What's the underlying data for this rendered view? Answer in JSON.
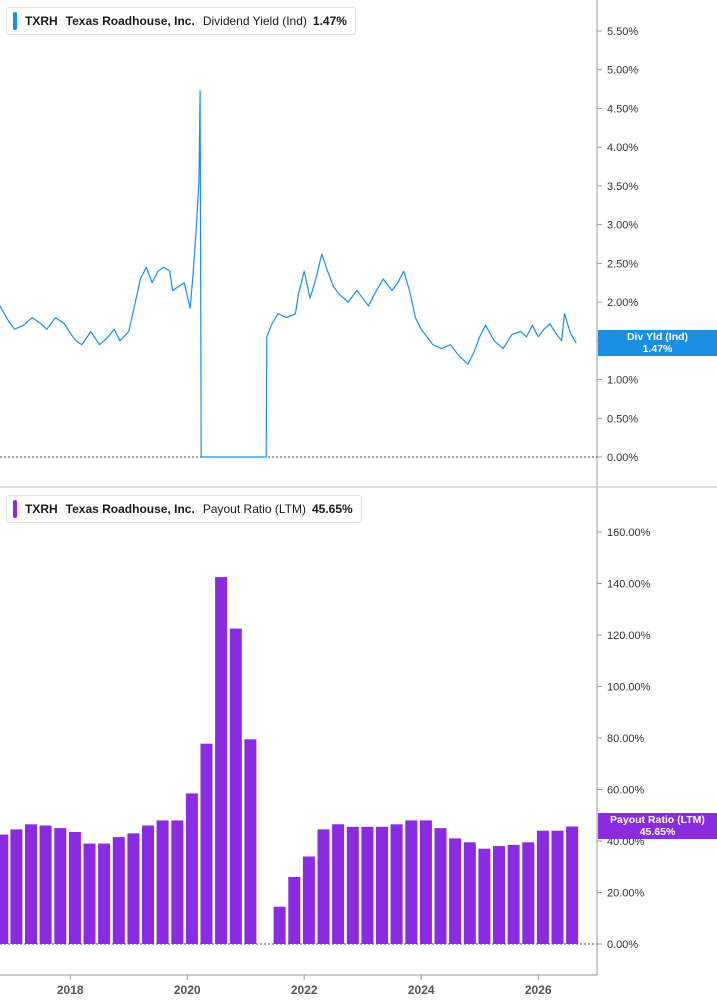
{
  "chart_data": [
    {
      "type": "line",
      "ticker": "TXRH",
      "company": "Texas Roadhouse, Inc.",
      "metric": "Dividend Yield (Ind)",
      "current_value": "1.47%",
      "badge_label": "Div Yld (Ind)",
      "badge_value": "1.47%",
      "color": "#1a8fe3",
      "ylim": [
        0,
        5.75
      ],
      "y_ticks": [
        "0.00%",
        "0.50%",
        "1.00%",
        "1.50%",
        "2.00%",
        "2.50%",
        "3.00%",
        "3.50%",
        "4.00%",
        "4.50%",
        "5.00%",
        "5.50%"
      ],
      "y_tick_values": [
        0,
        0.5,
        1.0,
        1.5,
        2.0,
        2.5,
        3.0,
        3.5,
        4.0,
        4.5,
        5.0,
        5.5
      ],
      "x": [
        2016.8,
        2016.95,
        2017.05,
        2017.2,
        2017.35,
        2017.5,
        2017.6,
        2017.75,
        2017.9,
        2018.0,
        2018.1,
        2018.2,
        2018.35,
        2018.5,
        2018.65,
        2018.75,
        2018.85,
        2019.0,
        2019.1,
        2019.2,
        2019.3,
        2019.4,
        2019.5,
        2019.6,
        2019.7,
        2019.75,
        2019.85,
        2019.95,
        2020.05,
        2020.1,
        2020.15,
        2020.2,
        2020.22,
        2020.24,
        2020.26,
        2021.35,
        2021.36,
        2021.45,
        2021.55,
        2021.7,
        2021.85,
        2021.9,
        2022.0,
        2022.1,
        2022.2,
        2022.3,
        2022.4,
        2022.5,
        2022.6,
        2022.75,
        2022.9,
        2023.0,
        2023.1,
        2023.2,
        2023.35,
        2023.5,
        2023.6,
        2023.7,
        2023.8,
        2023.9,
        2024.0,
        2024.1,
        2024.2,
        2024.35,
        2024.5,
        2024.65,
        2024.8,
        2024.9,
        2025.0,
        2025.1,
        2025.25,
        2025.4,
        2025.55,
        2025.7,
        2025.8,
        2025.9,
        2026.0,
        2026.1,
        2026.2,
        2026.3,
        2026.4,
        2026.45,
        2026.55,
        2026.65
      ],
      "values": [
        1.95,
        1.75,
        1.65,
        1.7,
        1.8,
        1.72,
        1.65,
        1.8,
        1.72,
        1.6,
        1.5,
        1.45,
        1.62,
        1.45,
        1.55,
        1.65,
        1.5,
        1.62,
        1.95,
        2.3,
        2.45,
        2.25,
        2.4,
        2.45,
        2.4,
        2.15,
        2.2,
        2.25,
        1.92,
        2.35,
        2.9,
        3.55,
        4.73,
        0,
        0,
        0,
        1.55,
        1.72,
        1.85,
        1.8,
        1.85,
        2.1,
        2.4,
        2.05,
        2.3,
        2.62,
        2.4,
        2.2,
        2.1,
        2.0,
        2.15,
        2.05,
        1.95,
        2.1,
        2.3,
        2.15,
        2.25,
        2.4,
        2.15,
        1.8,
        1.65,
        1.55,
        1.45,
        1.4,
        1.45,
        1.3,
        1.2,
        1.35,
        1.55,
        1.7,
        1.5,
        1.4,
        1.58,
        1.62,
        1.55,
        1.7,
        1.55,
        1.65,
        1.72,
        1.6,
        1.5,
        1.85,
        1.6,
        1.47
      ]
    },
    {
      "type": "bar",
      "ticker": "TXRH",
      "company": "Texas Roadhouse, Inc.",
      "metric": "Payout Ratio (LTM)",
      "current_value": "45.65%",
      "badge_label": "Payout Ratio (LTM)",
      "badge_value": "45.65%",
      "color": "#8a2be2",
      "ylim": [
        -10,
        170
      ],
      "y_ticks": [
        "0.00%",
        "20.00%",
        "40.00%",
        "60.00%",
        "80.00%",
        "100.00%",
        "120.00%",
        "140.00%",
        "160.00%"
      ],
      "y_tick_values": [
        0,
        20,
        40,
        60,
        80,
        100,
        120,
        140,
        160
      ],
      "x": [
        2016.84,
        2017.08,
        2017.33,
        2017.58,
        2017.83,
        2018.08,
        2018.33,
        2018.58,
        2018.83,
        2019.08,
        2019.33,
        2019.58,
        2019.83,
        2020.08,
        2020.33,
        2020.58,
        2020.83,
        2021.08,
        2021.33,
        2021.58,
        2021.83,
        2022.08,
        2022.33,
        2022.58,
        2022.83,
        2023.08,
        2023.33,
        2023.58,
        2023.83,
        2024.08,
        2024.33,
        2024.58,
        2024.83,
        2025.08,
        2025.33,
        2025.58,
        2025.83,
        2026.08,
        2026.33,
        2026.58
      ],
      "values": [
        42.5,
        44.5,
        46.5,
        46.0,
        45.0,
        43.5,
        39.0,
        39.0,
        41.5,
        43.0,
        46.0,
        48.0,
        48.0,
        58.5,
        77.8,
        142.5,
        122.5,
        79.5,
        null,
        14.5,
        26.0,
        34.0,
        44.5,
        46.5,
        45.5,
        45.5,
        45.5,
        46.5,
        48.0,
        48.0,
        45.0,
        41.0,
        39.5,
        37.0,
        38.0,
        38.5,
        39.5,
        44.0,
        44.0,
        45.65
      ]
    }
  ],
  "x_axis": {
    "range": [
      2016.8,
      2026.8
    ],
    "ticks": [
      2018,
      2020,
      2022,
      2024,
      2026
    ],
    "tick_labels": [
      "2018",
      "2020",
      "2022",
      "2024",
      "2026"
    ]
  }
}
